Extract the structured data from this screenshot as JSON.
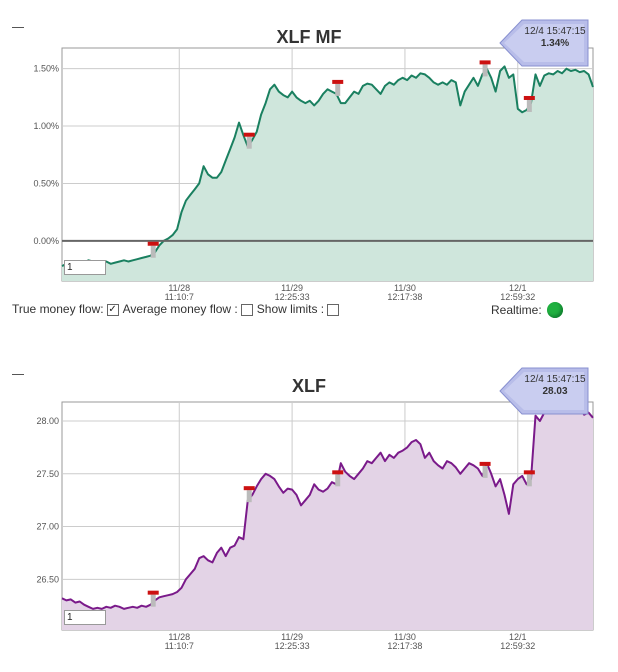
{
  "chart_data": [
    {
      "type": "area",
      "title": "XLF MF",
      "yticks": [
        "1.50%",
        "1.00%",
        "0.50%",
        "0.00%"
      ],
      "ytick_values": [
        1.5,
        1.0,
        0.5,
        0.0
      ],
      "ylim": [
        -0.35,
        1.68
      ],
      "xticks": [
        {
          "date": "11/28",
          "time": "11:10:7",
          "x": 26.5
        },
        {
          "date": "11/29",
          "time": "12:25:33",
          "x": 52.0
        },
        {
          "date": "11/30",
          "time": "12:17:38",
          "x": 77.5
        },
        {
          "date": "12/1",
          "time": "12:59:32",
          "x": 103.0
        }
      ],
      "xlim": [
        0,
        120
      ],
      "grid": true,
      "line_color": "#1a8060",
      "fill_color": "#cfe6dc",
      "zero_line": true,
      "callout": {
        "timestamp": "12/4 15:47:15",
        "value": "1.34%"
      },
      "zoom_value": "1",
      "markers_x": [
        20.5,
        42.2,
        62.2,
        95.5,
        105.5
      ],
      "x": [
        0,
        1,
        2,
        3,
        4,
        5,
        6,
        7,
        8,
        9,
        10,
        11,
        12,
        13,
        14,
        15,
        16,
        17,
        18,
        19,
        20,
        21,
        22,
        23,
        24,
        25,
        26,
        27,
        28,
        29,
        30,
        31,
        32,
        33,
        34,
        35,
        36,
        37,
        38,
        39,
        40,
        41,
        42,
        43,
        44,
        45,
        46,
        47,
        48,
        49,
        50,
        51,
        52,
        53,
        54,
        55,
        56,
        57,
        58,
        59,
        60,
        61,
        62,
        63,
        64,
        65,
        66,
        67,
        68,
        69,
        70,
        71,
        72,
        73,
        74,
        75,
        76,
        77,
        78,
        79,
        80,
        81,
        82,
        83,
        84,
        85,
        86,
        87,
        88,
        89,
        90,
        91,
        92,
        93,
        94,
        95,
        96,
        97,
        98,
        99,
        100,
        101,
        102,
        103,
        104,
        105,
        106,
        107,
        108,
        109,
        110,
        111,
        112,
        113,
        114,
        115,
        116,
        117,
        118,
        119,
        120
      ],
      "values": [
        -0.22,
        -0.2,
        -0.19,
        -0.18,
        -0.2,
        -0.19,
        -0.17,
        -0.18,
        -0.2,
        -0.19,
        -0.18,
        -0.2,
        -0.19,
        -0.18,
        -0.17,
        -0.18,
        -0.17,
        -0.16,
        -0.15,
        -0.14,
        -0.13,
        -0.1,
        -0.04,
        0.0,
        0.02,
        0.05,
        0.1,
        0.25,
        0.35,
        0.4,
        0.45,
        0.5,
        0.65,
        0.58,
        0.55,
        0.55,
        0.6,
        0.7,
        0.8,
        0.9,
        1.03,
        0.92,
        0.82,
        0.88,
        0.95,
        1.1,
        1.2,
        1.32,
        1.36,
        1.3,
        1.27,
        1.25,
        1.3,
        1.25,
        1.22,
        1.2,
        1.22,
        1.18,
        1.22,
        1.28,
        1.32,
        1.3,
        1.28,
        1.2,
        1.2,
        1.25,
        1.3,
        1.28,
        1.35,
        1.37,
        1.36,
        1.32,
        1.28,
        1.35,
        1.38,
        1.36,
        1.4,
        1.42,
        1.4,
        1.44,
        1.42,
        1.46,
        1.45,
        1.42,
        1.38,
        1.36,
        1.38,
        1.36,
        1.4,
        1.38,
        1.18,
        1.3,
        1.36,
        1.42,
        1.35,
        1.45,
        1.5,
        1.42,
        1.3,
        1.48,
        1.52,
        1.42,
        1.45,
        1.15,
        1.12,
        1.14,
        1.2,
        1.45,
        1.35,
        1.44,
        1.46,
        1.45,
        1.48,
        1.46,
        1.5,
        1.48,
        1.49,
        1.47,
        1.48,
        1.45,
        1.34
      ]
    },
    {
      "type": "area",
      "title": "XLF",
      "yticks": [
        "28.00",
        "27.50",
        "27.00",
        "26.50"
      ],
      "ytick_values": [
        28.0,
        27.5,
        27.0,
        26.5
      ],
      "ylim": [
        26.02,
        28.18
      ],
      "xticks": [
        {
          "date": "11/28",
          "time": "11:10:7",
          "x": 26.5
        },
        {
          "date": "11/29",
          "time": "12:25:33",
          "x": 52.0
        },
        {
          "date": "11/30",
          "time": "12:17:38",
          "x": 77.5
        },
        {
          "date": "12/1",
          "time": "12:59:32",
          "x": 103.0
        }
      ],
      "xlim": [
        0,
        120
      ],
      "grid": true,
      "line_color": "#7a1a8a",
      "fill_color": "#e3d3e6",
      "callout": {
        "timestamp": "12/4 15:47:15",
        "value": "28.03"
      },
      "zoom_value": "1",
      "markers_x": [
        20.5,
        42.2,
        62.2,
        95.5,
        105.5
      ],
      "x": [
        0,
        1,
        2,
        3,
        4,
        5,
        6,
        7,
        8,
        9,
        10,
        11,
        12,
        13,
        14,
        15,
        16,
        17,
        18,
        19,
        20,
        21,
        22,
        23,
        24,
        25,
        26,
        27,
        28,
        29,
        30,
        31,
        32,
        33,
        34,
        35,
        36,
        37,
        38,
        39,
        40,
        41,
        42,
        43,
        44,
        45,
        46,
        47,
        48,
        49,
        50,
        51,
        52,
        53,
        54,
        55,
        56,
        57,
        58,
        59,
        60,
        61,
        62,
        63,
        64,
        65,
        66,
        67,
        68,
        69,
        70,
        71,
        72,
        73,
        74,
        75,
        76,
        77,
        78,
        79,
        80,
        81,
        82,
        83,
        84,
        85,
        86,
        87,
        88,
        89,
        90,
        91,
        92,
        93,
        94,
        95,
        96,
        97,
        98,
        99,
        100,
        101,
        102,
        103,
        104,
        105,
        106,
        107,
        108,
        109,
        110,
        111,
        112,
        113,
        114,
        115,
        116,
        117,
        118,
        119,
        120
      ],
      "values": [
        26.32,
        26.3,
        26.31,
        26.28,
        26.29,
        26.26,
        26.24,
        26.22,
        26.23,
        26.22,
        26.24,
        26.23,
        26.25,
        26.24,
        26.22,
        26.23,
        26.24,
        26.23,
        26.25,
        26.24,
        26.26,
        26.3,
        26.33,
        26.34,
        26.35,
        26.36,
        26.38,
        26.42,
        26.5,
        26.55,
        26.6,
        26.7,
        26.72,
        26.68,
        26.66,
        26.75,
        26.8,
        26.72,
        26.8,
        26.82,
        26.9,
        26.88,
        27.25,
        27.3,
        27.38,
        27.45,
        27.5,
        27.48,
        27.45,
        27.38,
        27.32,
        27.36,
        27.35,
        27.3,
        27.2,
        27.25,
        27.3,
        27.4,
        27.35,
        27.33,
        27.36,
        27.42,
        27.4,
        27.6,
        27.52,
        27.48,
        27.45,
        27.5,
        27.55,
        27.62,
        27.6,
        27.65,
        27.7,
        27.62,
        27.68,
        27.65,
        27.7,
        27.72,
        27.75,
        27.8,
        27.82,
        27.78,
        27.65,
        27.7,
        27.62,
        27.58,
        27.55,
        27.62,
        27.6,
        27.56,
        27.5,
        27.55,
        27.6,
        27.58,
        27.55,
        27.48,
        27.6,
        27.5,
        27.38,
        27.45,
        27.3,
        27.12,
        27.4,
        27.45,
        27.48,
        27.4,
        27.45,
        28.05,
        28.0,
        28.08,
        28.12,
        28.16,
        28.1,
        28.12,
        28.08,
        28.15,
        28.1,
        28.12,
        28.06,
        28.08,
        28.03
      ]
    }
  ],
  "controls": {
    "true_money_flow": "True money flow:",
    "true_money_flow_checked": "✓",
    "average_money_flow": "Average money flow :",
    "show_limits": "Show limits :",
    "realtime": "Realtime:"
  }
}
